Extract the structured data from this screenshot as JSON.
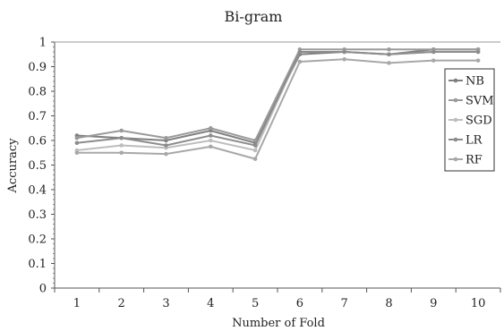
{
  "chart_data": {
    "type": "line",
    "title": "Bi-gram",
    "xlabel": "Number of Fold",
    "ylabel": "Accuracy",
    "categories": [
      "1",
      "2",
      "3",
      "4",
      "5",
      "6",
      "7",
      "8",
      "9",
      "10"
    ],
    "ylim": [
      0,
      1
    ],
    "yticks": [
      "0",
      "0.1",
      "0.2",
      "0.3",
      "0.4",
      "0.5",
      "0.6",
      "0.7",
      "0.8",
      "0.9",
      "1"
    ],
    "grid": false,
    "legend_position": "right",
    "series": [
      {
        "name": "NB",
        "color": "#7f7f7f",
        "values": [
          0.62,
          0.61,
          0.6,
          0.64,
          0.59,
          0.95,
          0.96,
          0.95,
          0.97,
          0.97
        ]
      },
      {
        "name": "SVM",
        "color": "#9a9a9a",
        "values": [
          0.61,
          0.64,
          0.61,
          0.65,
          0.6,
          0.97,
          0.97,
          0.97,
          0.97,
          0.97
        ]
      },
      {
        "name": "SGD",
        "color": "#bdbdbd",
        "values": [
          0.56,
          0.58,
          0.57,
          0.6,
          0.56,
          0.96,
          0.96,
          0.95,
          0.96,
          0.96
        ]
      },
      {
        "name": "LR",
        "color": "#8c8c8c",
        "values": [
          0.59,
          0.61,
          0.58,
          0.62,
          0.58,
          0.96,
          0.96,
          0.95,
          0.96,
          0.96
        ]
      },
      {
        "name": "RF",
        "color": "#a8a8a8",
        "values": [
          0.55,
          0.55,
          0.545,
          0.575,
          0.525,
          0.92,
          0.93,
          0.915,
          0.925,
          0.925
        ]
      }
    ]
  }
}
